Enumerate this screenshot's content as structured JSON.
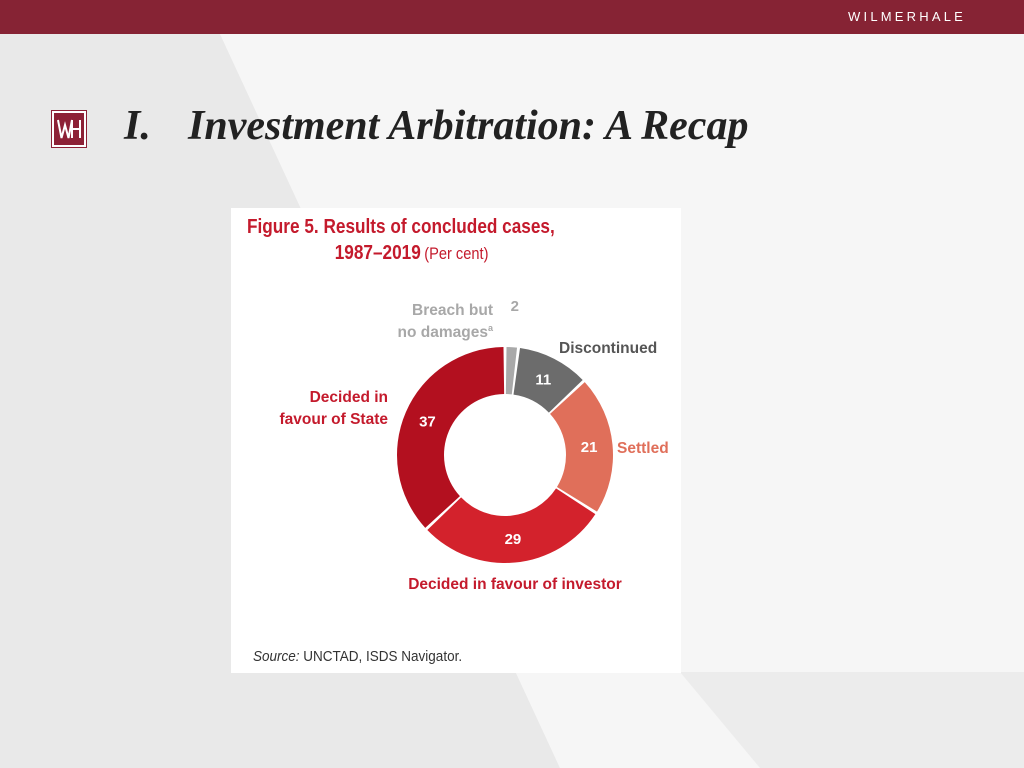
{
  "header": {
    "brand": "WILMERHALE"
  },
  "logo": {
    "icon": "wh-logo-icon",
    "color": "#8d2136"
  },
  "slide": {
    "number": "I.",
    "title": "Investment Arbitration: A Recap"
  },
  "figure": {
    "title_line1": "Figure 5. Results of concluded cases,",
    "title_line2": "1987–2019",
    "unit": "(Per cent)",
    "source_label": "Source:",
    "source_text": " UNCTAD, ISDS Navigator."
  },
  "chart_data": {
    "type": "pie",
    "title": "Figure 5. Results of concluded cases, 1987–2019",
    "unit": "(Per cent)",
    "slices": [
      {
        "label": "Breach but no damages",
        "footnote": "a",
        "value": 2,
        "color": "#a9a9a9"
      },
      {
        "label": "Discontinued",
        "value": 11,
        "color": "#6c6c6c"
      },
      {
        "label": "Settled",
        "value": 21,
        "color": "#e06f5a"
      },
      {
        "label": "Decided in favour of investor",
        "value": 29,
        "color": "#d3222c"
      },
      {
        "label": "Decided in favour of State",
        "value": 37,
        "color": "#b3101f"
      }
    ],
    "label_colors": {
      "Breach but no damages": "#a8a8a8",
      "Discontinued": "#555555",
      "Settled": "#e06f5a",
      "Decided in favour of investor": "#c41a2c",
      "Decided in favour of State": "#c41a2c"
    }
  }
}
